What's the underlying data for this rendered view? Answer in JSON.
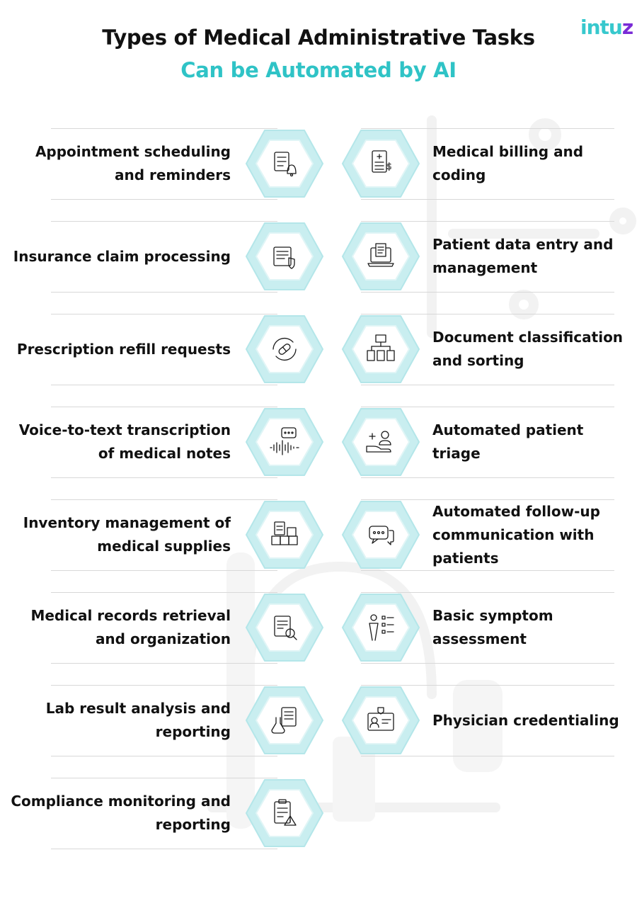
{
  "header": {
    "title_line1": "Types of Medical Administrative Tasks",
    "title_line2": "Can be Automated by AI",
    "logo_main": "intu",
    "logo_accent": "z"
  },
  "colors": {
    "accent": "#2fc3c6",
    "hex_fill": "#c9eef0",
    "hex_inner": "#ffffff",
    "text": "#111111"
  },
  "left_tasks": [
    {
      "label": "Appointment scheduling and reminders",
      "icon": "calendar-bell-icon"
    },
    {
      "label": "Insurance claim processing",
      "icon": "shield-document-icon"
    },
    {
      "label": "Prescription refill requests",
      "icon": "pill-refresh-icon"
    },
    {
      "label": "Voice-to-text transcription of medical notes",
      "icon": "voice-chat-icon"
    },
    {
      "label": "Inventory management of medical supplies",
      "icon": "boxes-clipboard-icon"
    },
    {
      "label": "Medical records retrieval and organization",
      "icon": "document-search-icon"
    },
    {
      "label": "Lab result analysis and reporting",
      "icon": "flask-report-icon"
    },
    {
      "label": "Compliance monitoring and reporting",
      "icon": "clipboard-warning-icon"
    }
  ],
  "right_tasks": [
    {
      "label": "Medical billing and coding",
      "icon": "billing-document-icon"
    },
    {
      "label": "Patient data entry and management",
      "icon": "laptop-document-icon"
    },
    {
      "label": "Document classification and sorting",
      "icon": "folder-hierarchy-icon"
    },
    {
      "label": "Automated patient triage",
      "icon": "hand-patient-icon"
    },
    {
      "label": "Automated follow-up communication with patients",
      "icon": "chat-bubbles-icon"
    },
    {
      "label": "Basic symptom assessment",
      "icon": "person-checklist-icon"
    },
    {
      "label": "Physician credentialing",
      "icon": "id-card-icon"
    }
  ]
}
